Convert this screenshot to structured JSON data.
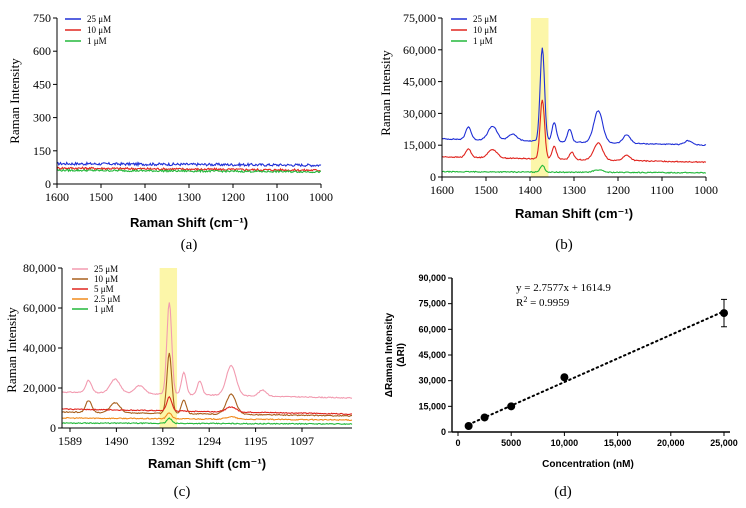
{
  "chart_data": [
    {
      "panel": "(a)",
      "type": "line",
      "xlabel": "Raman Shift (cm⁻¹)",
      "ylabel": "Raman Intensity",
      "xlim": [
        1600,
        1000
      ],
      "ylim": [
        0,
        750
      ],
      "xticks": [
        "1600",
        "1500",
        "1400",
        "1300",
        "1200",
        "1100",
        "1000"
      ],
      "yticks": [
        "0",
        "150",
        "300",
        "450",
        "600",
        "750"
      ],
      "legend": "top-left",
      "series": [
        {
          "name": "25 μM",
          "color": "#1f2fd6",
          "baseline": 92,
          "end": 85,
          "noise": 6
        },
        {
          "name": "10 μM",
          "color": "#e0251f",
          "baseline": 72,
          "end": 62,
          "noise": 5
        },
        {
          "name": "1 μM",
          "color": "#22b83a",
          "baseline": 62,
          "end": 55,
          "noise": 4
        }
      ]
    },
    {
      "panel": "(b)",
      "type": "line",
      "xlabel": "Raman Shift (cm⁻¹)",
      "ylabel": "Raman Intensity",
      "xlim": [
        1600,
        1000
      ],
      "ylim": [
        0,
        75000
      ],
      "xticks": [
        "1600",
        "1500",
        "1400",
        "1300",
        "1200",
        "1100",
        "1000"
      ],
      "yticks": [
        "0",
        "15,000",
        "30,000",
        "45,000",
        "60,000",
        "75,000"
      ],
      "legend": "top-left",
      "highlight": [
        1398,
        1358
      ],
      "series": [
        {
          "name": "25 μM",
          "color": "#1f2fd6",
          "baseline": 18000,
          "end": 15000,
          "peaks": [
            [
              1372,
              44000,
              5
            ],
            [
              1540,
              6000,
              6
            ],
            [
              1485,
              6500,
              10
            ],
            [
              1440,
              3000,
              10
            ],
            [
              1345,
              9000,
              5
            ],
            [
              1310,
              6000,
              5
            ],
            [
              1245,
              15000,
              10
            ],
            [
              1180,
              4000,
              8
            ],
            [
              1040,
              2000,
              8
            ]
          ]
        },
        {
          "name": "10 μM",
          "color": "#e0251f",
          "baseline": 9500,
          "end": 7000,
          "peaks": [
            [
              1372,
              28000,
              5
            ],
            [
              1540,
              4000,
              6
            ],
            [
              1485,
              4000,
              10
            ],
            [
              1345,
              6000,
              5
            ],
            [
              1305,
              3500,
              5
            ],
            [
              1245,
              8000,
              10
            ],
            [
              1180,
              2500,
              8
            ]
          ]
        },
        {
          "name": "1 μM",
          "color": "#22b83a",
          "baseline": 2500,
          "end": 2000,
          "peaks": [
            [
              1372,
              3200,
              5
            ],
            [
              1245,
              1200,
              10
            ]
          ]
        }
      ]
    },
    {
      "panel": "(c)",
      "type": "line",
      "xlabel": "Raman Shift (cm⁻¹)",
      "ylabel": "Raman Intensity",
      "xlim": [
        1600,
        1000
      ],
      "ylim": [
        0,
        80000
      ],
      "xticks": [
        "1589",
        "1490",
        "1392",
        "1294",
        "1195",
        "1097"
      ],
      "yticks": [
        "0",
        "20,000",
        "40,000",
        "60,000",
        "80,000"
      ],
      "legend": "top-left",
      "highlight": [
        1398,
        1362
      ],
      "series": [
        {
          "name": "25 μM",
          "color": "#f29bb0",
          "baseline": 18000,
          "end": 15000,
          "peaks": [
            [
              1378,
              46000,
              5
            ],
            [
              1545,
              6000,
              6
            ],
            [
              1490,
              7000,
              10
            ],
            [
              1440,
              4000,
              10
            ],
            [
              1348,
              11000,
              5
            ],
            [
              1315,
              7000,
              5
            ],
            [
              1250,
              15000,
              10
            ],
            [
              1185,
              3000,
              8
            ]
          ]
        },
        {
          "name": "10 μM",
          "color": "#a8601e",
          "baseline": 8000,
          "end": 6000,
          "peaks": [
            [
              1378,
              30000,
              5
            ],
            [
              1545,
              6000,
              6
            ],
            [
              1490,
              5000,
              10
            ],
            [
              1348,
              7000,
              5
            ],
            [
              1250,
              10000,
              10
            ]
          ]
        },
        {
          "name": "5 μM",
          "color": "#e0251f",
          "baseline": 9500,
          "end": 7000,
          "peaks": [
            [
              1378,
              7000,
              5
            ],
            [
              1250,
              2500,
              10
            ]
          ]
        },
        {
          "name": "2.5 μM",
          "color": "#f08a1c",
          "baseline": 5000,
          "end": 4000,
          "peaks": [
            [
              1378,
              3000,
              5
            ],
            [
              1250,
              1200,
              10
            ]
          ]
        },
        {
          "name": "1 μM",
          "color": "#22b83a",
          "baseline": 2500,
          "end": 2000,
          "peaks": [
            [
              1378,
              2500,
              5
            ]
          ]
        }
      ]
    },
    {
      "panel": "(d)",
      "type": "scatter",
      "xlabel": "Concentration (nM)",
      "ylabel_line1": "ΔRaman Intensity",
      "ylabel_line2": "(ΔRI)",
      "xlim": [
        0,
        25000
      ],
      "ylim": [
        0,
        90000
      ],
      "xticks": [
        {
          "label": "0",
          "value": 0
        },
        {
          "label": "5000",
          "value": 5000
        },
        {
          "label": "10,000",
          "value": 10000
        },
        {
          "label": "15,000",
          "value": 15000
        },
        {
          "label": "20,000",
          "value": 20000
        },
        {
          "label": "25,000",
          "value": 25000
        }
      ],
      "yticks": [
        {
          "label": "0",
          "value": 0
        },
        {
          "label": "15,000",
          "value": 15000
        },
        {
          "label": "30,000",
          "value": 30000
        },
        {
          "label": "45,000",
          "value": 45000
        },
        {
          "label": "60,000",
          "value": 60000
        },
        {
          "label": "75,000",
          "value": 75000
        },
        {
          "label": "90,000",
          "value": 90000
        }
      ],
      "x": [
        1000,
        2500,
        5000,
        10000,
        25000
      ],
      "y": [
        3500,
        8500,
        15000,
        32000,
        69500
      ],
      "error": [
        0,
        0,
        0,
        0,
        8000
      ],
      "fit": {
        "slope": 2.7577,
        "intercept": 1614.9,
        "style": "dotted"
      },
      "equation": "y = 2.7577x + 1614.9",
      "r2_label": "R",
      "r2_value": " = 0.9959"
    }
  ]
}
